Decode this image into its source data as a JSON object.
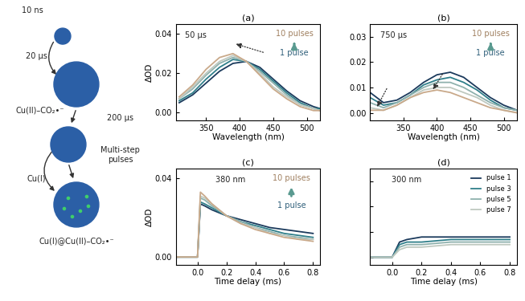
{
  "diagram": {
    "texts": [
      "10 ns",
      "20 μs",
      "Cu(II)–CO₂•⁻",
      "200 μs",
      "Multi-step\npulses",
      "Cu(I)",
      "Cu(I)@Cu(II)–CO₂•⁻"
    ]
  },
  "chart_data": [
    {
      "type": "line",
      "title": "(a)",
      "x_label": "Wavelength (nm)",
      "y_label": "ΔOD",
      "annotations": [
        "50 μs",
        "10 pulses",
        "1 pulse"
      ],
      "x": [
        310,
        330,
        350,
        370,
        390,
        410,
        430,
        450,
        470,
        490,
        510,
        520
      ],
      "series": [
        {
          "color": "#1b3a5c",
          "values": [
            0.005,
            0.009,
            0.015,
            0.021,
            0.025,
            0.026,
            0.023,
            0.017,
            0.011,
            0.006,
            0.003,
            0.002
          ]
        },
        {
          "color": "#2f7f8a",
          "values": [
            0.006,
            0.01,
            0.017,
            0.023,
            0.027,
            0.026,
            0.022,
            0.016,
            0.01,
            0.005,
            0.002,
            0.002
          ]
        },
        {
          "color": "#8fb1ad",
          "values": [
            0.007,
            0.012,
            0.019,
            0.025,
            0.028,
            0.026,
            0.021,
            0.015,
            0.009,
            0.004,
            0.002,
            0.001
          ]
        },
        {
          "color": "#bfc9c0",
          "values": [
            0.007,
            0.013,
            0.02,
            0.026,
            0.029,
            0.026,
            0.02,
            0.013,
            0.008,
            0.004,
            0.002,
            0.001
          ]
        },
        {
          "color": "#c9a98a",
          "values": [
            0.008,
            0.014,
            0.022,
            0.028,
            0.03,
            0.026,
            0.019,
            0.012,
            0.007,
            0.003,
            0.001,
            0.001
          ]
        }
      ],
      "xlim": [
        305,
        520
      ],
      "xticks": [
        350,
        400,
        450,
        500
      ],
      "ylim": [
        -0.004,
        0.045
      ],
      "yticks": [
        {
          "value": 0,
          "label": "0.00"
        },
        0.02,
        0.04
      ]
    },
    {
      "type": "line",
      "title": "(b)",
      "x_label": "Wavelength (nm)",
      "annotations": [
        "750 μs",
        "10 pulses",
        "1 pulse"
      ],
      "x": [
        300,
        320,
        340,
        360,
        380,
        400,
        420,
        440,
        460,
        480,
        500,
        520
      ],
      "series": [
        {
          "color": "#1b3a5c",
          "values": [
            0.008,
            0.004,
            0.005,
            0.008,
            0.012,
            0.015,
            0.016,
            0.014,
            0.01,
            0.006,
            0.003,
            0.001
          ]
        },
        {
          "color": "#2f7f8a",
          "values": [
            0.006,
            0.003,
            0.004,
            0.007,
            0.011,
            0.013,
            0.014,
            0.012,
            0.009,
            0.005,
            0.002,
            0.001
          ]
        },
        {
          "color": "#8fb1ad",
          "values": [
            0.004,
            0.002,
            0.004,
            0.007,
            0.01,
            0.012,
            0.012,
            0.01,
            0.007,
            0.004,
            0.002,
            0.001
          ]
        },
        {
          "color": "#bfc9c0",
          "values": [
            0.002,
            0.001,
            0.003,
            0.006,
            0.009,
            0.01,
            0.01,
            0.008,
            0.006,
            0.003,
            0.001,
            0.0
          ]
        },
        {
          "color": "#c9a98a",
          "values": [
            0.001,
            0.001,
            0.003,
            0.006,
            0.008,
            0.009,
            0.008,
            0.006,
            0.004,
            0.002,
            0.001,
            0.0
          ]
        }
      ],
      "xlim": [
        300,
        520
      ],
      "xticks": [
        350,
        400,
        450,
        500
      ],
      "ylim": [
        -0.003,
        0.035
      ],
      "yticks": [
        {
          "value": 0,
          "label": "0.00"
        },
        0.01,
        0.02,
        0.03
      ]
    },
    {
      "type": "line",
      "title": "(c)",
      "x_label": "Time delay (ms)",
      "y_label": "ΔOD",
      "annotations": [
        "380 nm",
        "10 pulses",
        "1 pulse"
      ],
      "x": [
        -0.15,
        -0.05,
        0,
        0.02,
        0.05,
        0.1,
        0.2,
        0.3,
        0.4,
        0.5,
        0.6,
        0.7,
        0.8
      ],
      "series": [
        {
          "color": "#1b3a5c",
          "values": [
            0,
            0,
            0,
            0.027,
            0.026,
            0.024,
            0.021,
            0.019,
            0.017,
            0.015,
            0.014,
            0.013,
            0.012
          ]
        },
        {
          "color": "#2f7f8a",
          "values": [
            0,
            0,
            0,
            0.028,
            0.027,
            0.025,
            0.021,
            0.018,
            0.016,
            0.014,
            0.012,
            0.011,
            0.01
          ]
        },
        {
          "color": "#8fb1ad",
          "values": [
            0,
            0,
            0,
            0.03,
            0.029,
            0.026,
            0.021,
            0.018,
            0.015,
            0.013,
            0.011,
            0.01,
            0.009
          ]
        },
        {
          "color": "#bfc9c0",
          "values": [
            0,
            0,
            0,
            0.031,
            0.03,
            0.027,
            0.021,
            0.017,
            0.015,
            0.012,
            0.011,
            0.009,
            0.009
          ]
        },
        {
          "color": "#c9a98a",
          "values": [
            0,
            0,
            0,
            0.033,
            0.031,
            0.027,
            0.021,
            0.017,
            0.014,
            0.012,
            0.01,
            0.009,
            0.008
          ]
        }
      ],
      "xlim": [
        -0.15,
        0.85
      ],
      "xticks": [
        0.0,
        0.2,
        0.4,
        0.6,
        0.8
      ],
      "ylim": [
        -0.004,
        0.045
      ],
      "yticks": [
        {
          "value": 0,
          "label": "0.00"
        },
        0.04
      ]
    },
    {
      "type": "line",
      "title": "(d)",
      "x_label": "Time delay (ms)",
      "annotations": [
        "300 nm"
      ],
      "legend": "upper right",
      "tick_labels": "x",
      "x": [
        -0.15,
        -0.02,
        0,
        0.05,
        0.1,
        0.2,
        0.4,
        0.6,
        0.8
      ],
      "series": [
        {
          "name": "pulse 1",
          "color": "#1b3a5c",
          "values": [
            0,
            0,
            0,
            0.006,
            0.007,
            0.008,
            0.008,
            0.008,
            0.008
          ]
        },
        {
          "name": "pulse 3",
          "color": "#2f7f8a",
          "values": [
            0,
            0,
            0,
            0.005,
            0.006,
            0.006,
            0.007,
            0.007,
            0.007
          ]
        },
        {
          "name": "pulse 5",
          "color": "#8fb1ad",
          "values": [
            0,
            0,
            0,
            0.004,
            0.005,
            0.005,
            0.006,
            0.006,
            0.006
          ]
        },
        {
          "name": "pulse 7",
          "color": "#bfc9c0",
          "values": [
            0,
            0,
            0,
            0.003,
            0.004,
            0.004,
            0.005,
            0.005,
            0.005
          ]
        }
      ],
      "xlim": [
        -0.15,
        0.85
      ],
      "xticks": [
        0.0,
        0.2,
        0.4,
        0.6,
        0.8
      ],
      "ylim": [
        -0.003,
        0.035
      ],
      "yticks": [
        0,
        0.01,
        0.02,
        0.03
      ]
    }
  ]
}
